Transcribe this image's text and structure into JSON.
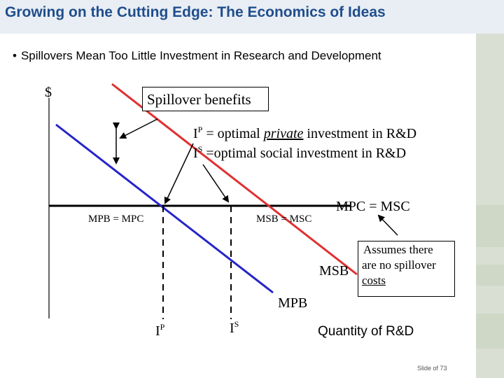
{
  "slide": {
    "title": "Growing on the Cutting Edge: The Economics of Ideas",
    "bullet_glyph": "•",
    "bullet": "Spillovers Mean Too Little Investment in Research and Development",
    "slide_number": "Slide of 73"
  },
  "diagram": {
    "y_axis_label": "$",
    "x_axis_label": "Quantity of R&D",
    "spillover_box": "Spillover benefits",
    "ip_def": {
      "base": "I",
      "sup": "P",
      "text_prefix": " = optimal ",
      "text_italic": "private",
      "text_suffix": " investment in R&D"
    },
    "is_def": {
      "base": "I",
      "sup": "S",
      "text": " =optimal social investment in R&D"
    },
    "mpb_mpc_label": "MPB = MPC",
    "msb_msc_label": "MSB = MSC",
    "mpc_msc_label": "MPC = MSC",
    "msb_label": "MSB",
    "mpb_label": "MPB",
    "assumption_box": {
      "line1": "Assumes there",
      "line2": "are no spillover",
      "line3": "costs"
    },
    "ip_tick": {
      "base": "I",
      "sup": "P"
    },
    "is_tick": {
      "base": "I",
      "sup": "S"
    },
    "colors": {
      "msb_curve": "#e03030",
      "mpb_curve": "#2424c8",
      "title": "#1f4e8c"
    }
  }
}
